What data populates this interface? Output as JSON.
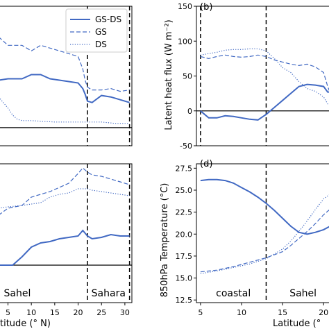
{
  "colors": {
    "series": "#4169c3",
    "axis": "#000000"
  },
  "legend": {
    "entries": [
      {
        "name": "GS-DS",
        "dash": "solid"
      },
      {
        "name": "GS",
        "dash": "dashed"
      },
      {
        "name": "DS",
        "dash": "dotted"
      }
    ],
    "placement": "top-right of panel (a)"
  },
  "chart_data": [
    {
      "panel": "a",
      "type": "line",
      "xlim": [
        3,
        31.5
      ],
      "ylim": [
        0,
        1
      ],
      "y_ticks_visible": false,
      "xlabel": "",
      "ylabel": "",
      "title": "",
      "vlines": [
        22,
        31
      ],
      "zero_line": 0.13,
      "series": [
        {
          "name": "GS-DS",
          "dash": "solid",
          "x": [
            3,
            5,
            8,
            10,
            12,
            14,
            16,
            18,
            20,
            21,
            21.5,
            22,
            23,
            25,
            27,
            29,
            31
          ],
          "y": [
            0.47,
            0.48,
            0.48,
            0.51,
            0.51,
            0.48,
            0.47,
            0.46,
            0.45,
            0.41,
            0.37,
            0.32,
            0.31,
            0.36,
            0.35,
            0.33,
            0.31
          ]
        },
        {
          "name": "GS",
          "dash": "dashed",
          "x": [
            3,
            5,
            8,
            10,
            12,
            14,
            16,
            18,
            20,
            21,
            21.5,
            22,
            23,
            25,
            27,
            29,
            31
          ],
          "y": [
            0.78,
            0.72,
            0.72,
            0.68,
            0.72,
            0.7,
            0.68,
            0.66,
            0.64,
            0.55,
            0.47,
            0.42,
            0.4,
            0.4,
            0.41,
            0.39,
            0.4
          ]
        },
        {
          "name": "DS",
          "dash": "dotted",
          "x": [
            3,
            4,
            5,
            6,
            7,
            8,
            10,
            15,
            20,
            22,
            25,
            28,
            31
          ],
          "y": [
            0.35,
            0.31,
            0.27,
            0.22,
            0.19,
            0.18,
            0.18,
            0.17,
            0.17,
            0.17,
            0.17,
            0.16,
            0.16
          ]
        }
      ]
    },
    {
      "panel": "b",
      "label": "(b)",
      "type": "line",
      "xlim": [
        4.5,
        21
      ],
      "ylim": [
        -50,
        150
      ],
      "yticks": [
        -50,
        0,
        50,
        100,
        150
      ],
      "ylabel": "Latent heat flux (W m⁻²)",
      "xlabel": "",
      "vlines": [
        5,
        13
      ],
      "zero_line": 0,
      "series": [
        {
          "name": "GS-DS",
          "dash": "solid",
          "x": [
            5,
            5.5,
            6,
            7,
            8,
            9,
            10,
            11,
            12,
            13,
            14,
            15,
            16,
            17,
            18,
            19,
            20,
            20.5,
            21
          ],
          "y": [
            0,
            -5,
            -10,
            -10,
            -7,
            -8,
            -10,
            -12,
            -13,
            -5,
            5,
            15,
            25,
            35,
            38,
            37,
            35,
            27,
            27
          ]
        },
        {
          "name": "GS",
          "dash": "dashed",
          "x": [
            5,
            6,
            7,
            8,
            9,
            10,
            11,
            12,
            13,
            14,
            15,
            16,
            17,
            18,
            19,
            20,
            20.5,
            21
          ],
          "y": [
            78,
            75,
            78,
            80,
            78,
            77,
            78,
            80,
            78,
            73,
            70,
            67,
            65,
            67,
            63,
            55,
            35,
            20
          ]
        },
        {
          "name": "DS",
          "dash": "dotted",
          "x": [
            5,
            6,
            7,
            8,
            9,
            10,
            11,
            12,
            13,
            14,
            15,
            16,
            17,
            18,
            19,
            20,
            20.5,
            21
          ],
          "y": [
            80,
            82,
            84,
            87,
            88,
            88,
            89,
            89,
            86,
            75,
            62,
            55,
            42,
            32,
            28,
            20,
            10,
            10
          ]
        }
      ]
    },
    {
      "panel": "c",
      "type": "line",
      "xlim": [
        3,
        31.5
      ],
      "ylim": [
        0,
        1
      ],
      "y_ticks_visible": false,
      "xlabel": "titude (° N)",
      "xticks": [
        5,
        10,
        15,
        20,
        25,
        30
      ],
      "vlines": [
        22,
        31
      ],
      "zero_line": 0.27,
      "region_labels": [
        {
          "text": "Sahel",
          "x": 7
        },
        {
          "text": "Sahara",
          "x": 26.5
        }
      ],
      "series": [
        {
          "name": "GS-DS",
          "dash": "solid",
          "x": [
            3,
            6,
            8,
            10,
            12,
            14,
            16,
            18,
            20,
            21,
            22,
            23,
            25,
            27,
            29,
            31
          ],
          "y": [
            0.27,
            0.27,
            0.33,
            0.4,
            0.43,
            0.44,
            0.46,
            0.47,
            0.48,
            0.52,
            0.48,
            0.46,
            0.47,
            0.49,
            0.48,
            0.48
          ]
        },
        {
          "name": "GS",
          "dash": "dashed",
          "x": [
            3,
            5,
            8,
            10,
            12,
            14,
            16,
            18,
            20,
            21,
            22,
            23,
            25,
            27,
            29,
            31
          ],
          "y": [
            0.63,
            0.68,
            0.7,
            0.76,
            0.78,
            0.8,
            0.83,
            0.86,
            0.93,
            0.97,
            0.94,
            0.92,
            0.91,
            0.89,
            0.87,
            0.85
          ]
        },
        {
          "name": "DS",
          "dash": "dotted",
          "x": [
            3,
            5,
            8,
            10,
            12,
            14,
            16,
            18,
            20,
            22,
            23,
            25,
            27,
            29,
            31
          ],
          "y": [
            0.68,
            0.69,
            0.7,
            0.71,
            0.72,
            0.76,
            0.78,
            0.79,
            0.82,
            0.82,
            0.81,
            0.8,
            0.79,
            0.78,
            0.77
          ]
        }
      ]
    },
    {
      "panel": "d",
      "label": "(d)",
      "type": "line",
      "xlim": [
        4.5,
        21
      ],
      "ylim": [
        12.2,
        28
      ],
      "yticks": [
        12.5,
        15.0,
        17.5,
        20.0,
        22.5,
        25.0,
        27.5
      ],
      "ylabel": "850hPa Temperature (°C)",
      "xlabel": "Latitude (° N)",
      "xlabel_visible": "Latitude (°",
      "xticks": [
        5,
        10,
        15,
        20
      ],
      "vlines": [
        13
      ],
      "region_labels": [
        {
          "text": "coastal",
          "x": 9
        },
        {
          "text": "Sahel",
          "x": 17.5
        }
      ],
      "series": [
        {
          "name": "GS-DS",
          "dash": "solid",
          "x": [
            5,
            6,
            7,
            8,
            9,
            10,
            11,
            12,
            13,
            14,
            15,
            16,
            17,
            18,
            19,
            20,
            21
          ],
          "y": [
            26.1,
            26.2,
            26.2,
            26.1,
            25.8,
            25.3,
            24.8,
            24.2,
            23.5,
            22.7,
            21.8,
            20.9,
            20.2,
            20.0,
            20.2,
            20.5,
            21.0
          ]
        },
        {
          "name": "GS",
          "dash": "dashed",
          "x": [
            5,
            7,
            9,
            11,
            13,
            15,
            16,
            17,
            18,
            19,
            20,
            21
          ],
          "y": [
            15.7,
            15.9,
            16.3,
            16.8,
            17.3,
            18.0,
            18.7,
            19.5,
            20.3,
            21.2,
            22.2,
            23.0
          ]
        },
        {
          "name": "DS",
          "dash": "dotted",
          "x": [
            5,
            7,
            9,
            11,
            13,
            15,
            16,
            17,
            18,
            19,
            20,
            21
          ],
          "y": [
            15.5,
            15.8,
            16.2,
            16.6,
            17.2,
            18.3,
            19.2,
            20.3,
            21.5,
            22.8,
            24.0,
            24.7
          ]
        }
      ]
    }
  ]
}
